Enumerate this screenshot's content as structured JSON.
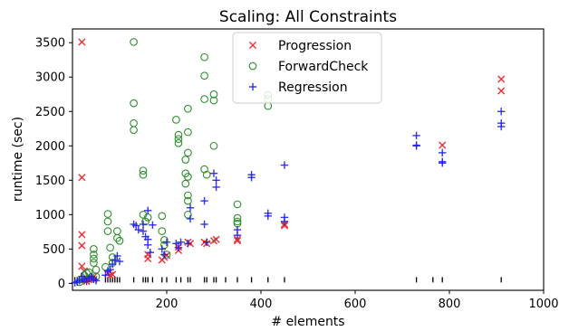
{
  "chart_data": {
    "type": "scatter",
    "title": "Scaling: All Constraints",
    "xlabel": "# elements",
    "ylabel": "runtime (sec)",
    "xlim": [
      0,
      1000
    ],
    "ylim": [
      -100,
      3700
    ],
    "xticks": [
      "200",
      "400",
      "600",
      "800",
      "1000"
    ],
    "yticks": [
      "0",
      "500",
      "1000",
      "1500",
      "2000",
      "2500",
      "3000",
      "3500"
    ],
    "legend_position": "top-center",
    "grid": false,
    "series": [
      {
        "name": "Progression",
        "marker": "x",
        "color": "#e8282b",
        "points": [
          [
            20,
            3510
          ],
          [
            20,
            1540
          ],
          [
            20,
            710
          ],
          [
            20,
            550
          ],
          [
            20,
            250
          ],
          [
            25,
            180
          ],
          [
            25,
            80
          ],
          [
            30,
            30
          ],
          [
            35,
            60
          ],
          [
            45,
            100
          ],
          [
            45,
            60
          ],
          [
            75,
            150
          ],
          [
            80,
            120
          ],
          [
            85,
            130
          ],
          [
            160,
            420
          ],
          [
            160,
            360
          ],
          [
            190,
            340
          ],
          [
            195,
            380
          ],
          [
            200,
            410
          ],
          [
            225,
            530
          ],
          [
            225,
            480
          ],
          [
            245,
            600
          ],
          [
            250,
            580
          ],
          [
            280,
            600
          ],
          [
            285,
            580
          ],
          [
            300,
            620
          ],
          [
            305,
            640
          ],
          [
            350,
            640
          ],
          [
            350,
            620
          ],
          [
            450,
            860
          ],
          [
            450,
            840
          ],
          [
            785,
            2010
          ],
          [
            910,
            2970
          ],
          [
            910,
            2800
          ]
        ]
      },
      {
        "name": "ForwardCheck",
        "marker": "o",
        "color": "#2f8f2f",
        "points": [
          [
            15,
            20
          ],
          [
            20,
            60
          ],
          [
            25,
            120
          ],
          [
            30,
            150
          ],
          [
            35,
            160
          ],
          [
            45,
            500
          ],
          [
            45,
            420
          ],
          [
            45,
            360
          ],
          [
            45,
            300
          ],
          [
            50,
            200
          ],
          [
            50,
            100
          ],
          [
            70,
            240
          ],
          [
            75,
            1010
          ],
          [
            75,
            900
          ],
          [
            75,
            760
          ],
          [
            80,
            520
          ],
          [
            85,
            380
          ],
          [
            85,
            300
          ],
          [
            95,
            760
          ],
          [
            95,
            660
          ],
          [
            100,
            620
          ],
          [
            130,
            3510
          ],
          [
            130,
            2620
          ],
          [
            130,
            2330
          ],
          [
            130,
            2230
          ],
          [
            150,
            1640
          ],
          [
            150,
            1580
          ],
          [
            150,
            1000
          ],
          [
            155,
            900
          ],
          [
            160,
            960
          ],
          [
            190,
            980
          ],
          [
            190,
            760
          ],
          [
            195,
            630
          ],
          [
            195,
            560
          ],
          [
            200,
            420
          ],
          [
            220,
            2380
          ],
          [
            225,
            2160
          ],
          [
            225,
            2100
          ],
          [
            225,
            2040
          ],
          [
            240,
            1800
          ],
          [
            240,
            1600
          ],
          [
            240,
            1450
          ],
          [
            245,
            1280
          ],
          [
            245,
            1200
          ],
          [
            245,
            1550
          ],
          [
            245,
            2200
          ],
          [
            245,
            2540
          ],
          [
            245,
            1900
          ],
          [
            245,
            1000
          ],
          [
            280,
            3290
          ],
          [
            280,
            3020
          ],
          [
            280,
            2680
          ],
          [
            280,
            1660
          ],
          [
            285,
            1580
          ],
          [
            300,
            2750
          ],
          [
            300,
            2660
          ],
          [
            300,
            2000
          ],
          [
            350,
            1150
          ],
          [
            350,
            950
          ],
          [
            350,
            900
          ],
          [
            350,
            870
          ],
          [
            415,
            2740
          ],
          [
            415,
            2680
          ],
          [
            415,
            2580
          ]
        ]
      },
      {
        "name": "Regression",
        "marker": "+",
        "color": "#2020e8",
        "points": [
          [
            5,
            10
          ],
          [
            10,
            20
          ],
          [
            15,
            40
          ],
          [
            20,
            100
          ],
          [
            25,
            60
          ],
          [
            30,
            30
          ],
          [
            35,
            80
          ],
          [
            40,
            100
          ],
          [
            45,
            60
          ],
          [
            50,
            40
          ],
          [
            70,
            120
          ],
          [
            75,
            180
          ],
          [
            80,
            200
          ],
          [
            85,
            280
          ],
          [
            90,
            340
          ],
          [
            95,
            400
          ],
          [
            100,
            320
          ],
          [
            130,
            860
          ],
          [
            135,
            840
          ],
          [
            140,
            780
          ],
          [
            150,
            860
          ],
          [
            150,
            760
          ],
          [
            155,
            680
          ],
          [
            160,
            640
          ],
          [
            160,
            1060
          ],
          [
            160,
            560
          ],
          [
            165,
            450
          ],
          [
            170,
            850
          ],
          [
            190,
            500
          ],
          [
            195,
            420
          ],
          [
            200,
            600
          ],
          [
            220,
            580
          ],
          [
            225,
            520
          ],
          [
            230,
            600
          ],
          [
            245,
            580
          ],
          [
            250,
            1100
          ],
          [
            250,
            940
          ],
          [
            280,
            1200
          ],
          [
            280,
            860
          ],
          [
            285,
            600
          ],
          [
            300,
            1600
          ],
          [
            305,
            1500
          ],
          [
            305,
            1400
          ],
          [
            350,
            780
          ],
          [
            350,
            700
          ],
          [
            380,
            1580
          ],
          [
            380,
            1540
          ],
          [
            415,
            1020
          ],
          [
            415,
            980
          ],
          [
            450,
            1720
          ],
          [
            450,
            960
          ],
          [
            450,
            900
          ],
          [
            730,
            2150
          ],
          [
            730,
            2010
          ],
          [
            730,
            2000
          ],
          [
            785,
            1900
          ],
          [
            785,
            1770
          ],
          [
            785,
            1750
          ],
          [
            910,
            2500
          ],
          [
            910,
            2330
          ],
          [
            910,
            2280
          ]
        ]
      }
    ],
    "rug_x": [
      5,
      10,
      15,
      20,
      25,
      30,
      35,
      40,
      45,
      50,
      70,
      75,
      80,
      85,
      90,
      95,
      100,
      130,
      150,
      155,
      160,
      170,
      190,
      200,
      220,
      230,
      245,
      250,
      280,
      285,
      300,
      305,
      325,
      350,
      380,
      415,
      450,
      730,
      765,
      785,
      910
    ]
  }
}
